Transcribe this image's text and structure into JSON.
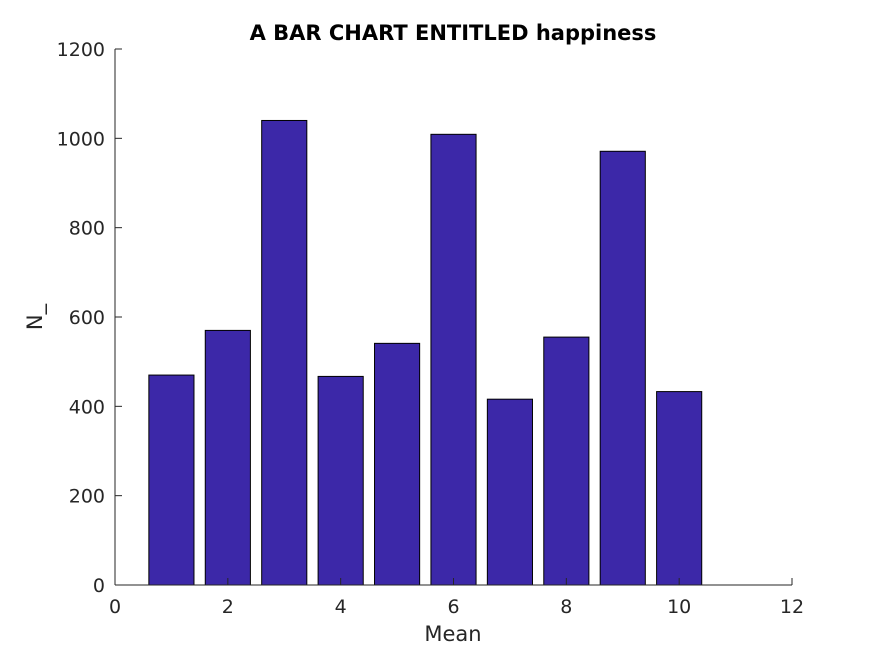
{
  "chart_data": {
    "type": "bar",
    "title": "A BAR CHART ENTITLED happiness",
    "xlabel": "Mean",
    "ylabel": "N_",
    "x": [
      1,
      2,
      3,
      4,
      5,
      6,
      7,
      8,
      9,
      10
    ],
    "values": [
      470,
      570,
      1040,
      467,
      541,
      1009,
      416,
      555,
      971,
      433
    ],
    "xlim": [
      0,
      12
    ],
    "ylim": [
      0,
      1200
    ],
    "xticks": [
      0,
      2,
      4,
      6,
      8,
      10,
      12
    ],
    "yticks": [
      0,
      200,
      400,
      600,
      800,
      1000,
      1200
    ],
    "bar_color": "#3c28a8",
    "edge_color": "#000000",
    "grid": false
  }
}
